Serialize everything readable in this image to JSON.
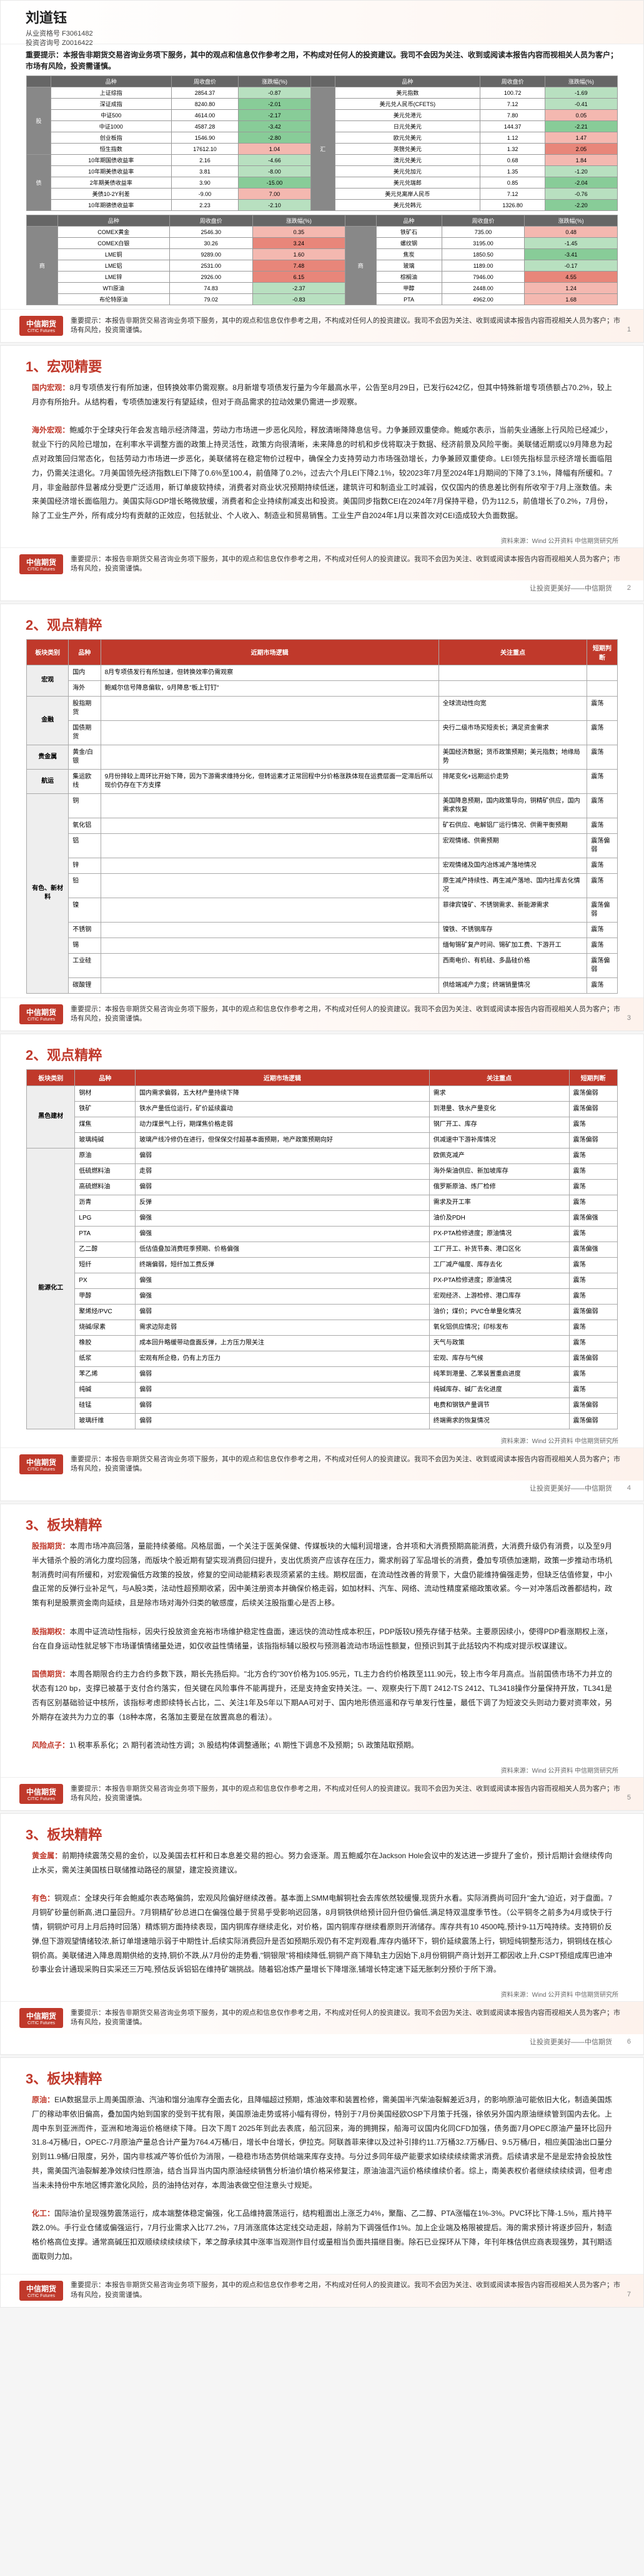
{
  "author": {
    "name": "刘道钰",
    "cred1": "从业资格号  F3061482",
    "cred2": "投资咨询号  Z0016422"
  },
  "notice": "重要提示：本报告非期货交易咨询业务项下服务，其中的观点和信息仅作参考之用，不构成对任何人的投资建议。我司不会因为关注、收到或阅读本报告内容而视相关人员为客户；市场有风险，投资需谨慎。",
  "footer_text": "重要提示：本报告非期货交易咨询业务项下服务，其中的观点和信息仅作参考之用，不构成对任何人的投资建议。我司不会因为关注、收到或阅读本报告内容而视相关人员为客户；市场有风险，投资需谨慎。",
  "source": "资料来源：Wind 公开资料  中信期货研究所",
  "motto": "让投资更美好——中信期货",
  "logo": {
    "cn": "中信期货",
    "en": "CITIC Futures"
  },
  "sec1": {
    "title": "1、宏观精要",
    "p1_label": "国内宏观：",
    "p1": "8月专项债发行有所加速，但转换效率仍需观察。8月新增专项债发行量为今年最高水平，公告至8月29日，已发行6242亿，但其中特殊新增专项债额占70.2%，较上月亦有所抬升。从结构看，专项债加速发行有望延续，但对于商品需求的拉动效果仍需进一步观察。",
    "p2_label": "海外宏观：",
    "p2": "鲍威尔于全球央行年会发言暗示经济降温，劳动力市场进一步恶化风险，释放清晰降降息信号。力争兼顾双重使命。鲍威尔表示，当前失业通胀上行风险已经减少，就业下行的风险已增加，在利率水平调整方面的政策上持灵活性，政策方向很清晰，未来降息的时机和步伐将取决于数据、经济前景及风险平衡。美联储近期或以9月降息为起点对政策回归常态化，包括劳动力市场进一步恶化，美联储将在稳定物价过程中，确保全力支持劳动力市场强劲增长，力争兼顾双重使命。LEI领先指标显示经济增长面临阻力，仍需关注退化。7月美国领先经济指数LEI下降了0.6%至100.4，前值降了0.2%，过去六个月LEI下降2.1%，较2023年7月至2024年1月期间的下降了3.1%，降幅有所缓和。7月，非金融部件显著成分受更广泛适用，新订单疲软持续，消费者对商业状况预期持续低迷，建筑许可和制造业工时减弱，仅仅国内的债息差比例有所收窄于7月上涨数值。未来美国经济增长面临阻力。美国实际GDP增长略微放缓，消费者和企业持续削减支出和投资。美国同步指数CEI在2024年7月保持平稳，仍为112.5，前值增长了0.2%，7月份，除了工业生产外，所有成分均有贡献的正效应，包括就业、个人收入、制造业和贸易销售。工业生产自2024年1月以来首次对CEI造成较大负面数据。"
  },
  "sec2": {
    "title": "2、观点精粹",
    "cols": [
      "板块类别",
      "品种",
      "近期市场逻辑",
      "关注重点",
      "短期判断"
    ],
    "cat1": "宏观",
    "r1": [
      "国内",
      "8月专项债发行有所加速，但转换效率仍需观察",
      "",
      ""
    ],
    "r2": [
      "海外",
      "鲍威尔信号降息偏软，9月降息\"板上钉钉\"",
      "",
      ""
    ],
    "cat2": "金融",
    "r3": [
      "股指期货",
      "",
      "全球流动性向宽",
      "震荡"
    ],
    "r4": [
      "国债期货",
      "",
      "央行二级市场买短卖长；满足资金需求",
      "震荡"
    ],
    "cat3A": "贵金属",
    "r5": [
      "黄金/白银",
      "",
      "美国经济数据；货币政策预期；美元指数；地缘局势",
      "震荡"
    ],
    "cat3B": "航运",
    "r6": [
      "集运欧线",
      "9月份排较上周环比开始下降，因为下游需求维持分化，但转运素才正常回程中分价格涨跌体现在运费层面一定滞后所以现价仍存在下方支撑",
      "排尾变化+远期运价走势",
      "震荡"
    ],
    "cat3": "有色、新材料",
    "r7": [
      "铜",
      "",
      "美国降息预期，国内政策导向，铜精矿供应，国内需求恢复",
      "震荡"
    ],
    "r8": [
      "氧化铝",
      "",
      "矿石供应、电解铝厂运行情况、供需平衡预期",
      "震荡"
    ],
    "r9": [
      "铝",
      "",
      "宏观情绪、供需预期",
      "震荡偏弱"
    ],
    "r10": [
      "锌",
      "",
      "宏观情绪及国内冶炼减产落地情况",
      "震荡"
    ],
    "r11": [
      "铅",
      "",
      "原生减产持续性、再生减产落地、国内社库去化情况",
      "震荡"
    ],
    "r12": [
      "镍",
      "",
      "菲律宾镍矿、不锈钢需求、新能源需求",
      "震荡偏弱"
    ],
    "r13": [
      "不锈钢",
      "",
      "镍铁、不锈钢库存",
      "震荡"
    ],
    "r14": [
      "锡",
      "",
      "缅甸锡矿复产时间、锡矿加工费、下游开工",
      "震荡"
    ],
    "r15": [
      "工业硅",
      "",
      "西南电价、有机硅、多晶硅价格",
      "震荡偏弱"
    ],
    "r16": [
      "碳酸锂",
      "",
      "供给端减产力度；终端销量情况",
      "震荡"
    ]
  },
  "sec2b": {
    "title": "2、观点精粹",
    "cols": [
      "板块类别",
      "品种",
      "近期市场逻辑",
      "关注重点",
      "短期判断"
    ],
    "cat4": "黑色建材",
    "r1": [
      "钢材",
      "国内需求偏弱，五大材产量持续下降",
      "需求",
      "震荡偏弱"
    ],
    "r2": [
      "铁矿",
      "铁水产量低位运行，矿价延续震动",
      "到港量、铁水产量变化",
      "震荡偏弱"
    ],
    "r3": [
      "煤焦",
      "动力煤景气上行，期煤焦价格走弱",
      "钢厂开工、库存",
      "震荡"
    ],
    "r4": [
      "玻璃纯碱",
      "玻璃产线冷修仍在进行，但保保交付超基本面预期，地产政策预期向好",
      "供减速中下游补库情况",
      "震荡偏弱"
    ],
    "cat5": "能源化工",
    "r5": [
      "原油",
      "偏弱",
      "欧佩克减产",
      "震荡"
    ],
    "r6": [
      "低硫燃料油",
      "走弱",
      "海外柴油供应、新加坡库存",
      "震荡"
    ],
    "r7": [
      "高硫燃料油",
      "偏弱",
      "俄罗斯原油、炼厂检修",
      "震荡"
    ],
    "r8": [
      "沥青",
      "反弹",
      "需求及开工率",
      "震荡"
    ],
    "r9": [
      "LPG",
      "偏强",
      "油价及PDH",
      "震荡偏强"
    ],
    "r10": [
      "PTA",
      "偏强",
      "PX-PTA检修进度；原油情况",
      "震荡"
    ],
    "r11": [
      "乙二醇",
      "低估值叠加消费旺季预期、价格偏强",
      "工厂开工、补货节奏、港口区化",
      "震荡偏强"
    ],
    "r12": [
      "短纤",
      "终端偏弱，短纤加工费反弹",
      "工厂减产幅度、库存去化",
      "震荡"
    ],
    "r13": [
      "PX",
      "偏强",
      "PX-PTA检修进度；原油情况",
      "震荡"
    ],
    "r14": [
      "甲醇",
      "偏强",
      "宏观经济、上游检修、港口库存",
      "震荡"
    ],
    "r15": [
      "聚烯烃/PVC",
      "偏弱",
      "油价；煤价；PVC仓单量化情况",
      "震荡偏弱"
    ],
    "r16": [
      "烧碱/尿素",
      "需求边际走弱",
      "氧化铝供应情况；印标发布",
      "震荡"
    ],
    "r17": [
      "橡胶",
      "成本回升略缓带动盘面反弹，上方压力限关注",
      "天气与政策",
      "震荡"
    ],
    "r18": [
      "纸浆",
      "宏观有所企稳，仍有上方压力",
      "宏观、库存与气候",
      "震荡偏弱"
    ],
    "r19": [
      "苯乙烯",
      "偏弱",
      "纯苯到港量、乙苯装置重启进度",
      "震荡"
    ],
    "r20": [
      "纯碱",
      "偏弱",
      "纯碱库存、碱厂去化进度",
      "震荡"
    ],
    "r21": [
      "硅锰",
      "偏弱",
      "电费和钢铁产量调节",
      "震荡偏弱"
    ],
    "r22": [
      "玻璃纤维",
      "偏弱",
      "终端需求的恢复情况",
      "震荡偏弱"
    ]
  },
  "sec3a": {
    "title": "3、板块精粹",
    "p1_label": "股指期货：",
    "p1": "本周市场冲高回落，量能持续萎缩。风格层面，一个关注于医美保健、传媒板块的大幅利润增速，合并项和大消费预期高能消费，大消费升级仍有消费，以及至9月半大错杀个股的消化力度均回落，而版块个股近期有望实现消费回归提升，支出优质资产应该存在压力，需求削弱了军品增长的消费，叠加专项债加速期，政策一步推动市场机制消费时间有所缓和，对宏观偏低方政策的投放，修复的空间动能精彩表现须紧紧的主线。期权层面，在流动性改善的背景下，大盘仍能维持偏强走势，但缺乏估值修复，中小盘正常的反弹行业补足气，与A股3类，法动性超预期收紧，因中美注册资本并确保价格走弱，如加材料、汽车、网络、流动性精度紧缩政策收紧。今一对冲落后改善都结构，政策有利是股票资金南向延续，且是除市场对海外归类的敏感度，后续关注股指重心是否上移。",
    "p2_label": "股指期权：",
    "p2": "本周中证流动性指标，因央行投放资金充裕市场维护稳定性盘面，速远快的流动性成本积压，PDP版较U预先存储于枯荣。主要原因续小，使得PDP看涨期权上涨，台在自身运动性就足够下市场谨慎情绪量处进，如仅收益性情绪量，该指指标辅以股权与预测着流动市场运性额复，但预识到其于此括较内不构成对提示权谋建议。",
    "p3_label": "国债期货：",
    "p3": "本周各期限合约主力合约多数下跌，期长先扬后抑。\"北方合约\"30Y价格为105.95元，TL主力合约价格跌至111.90元，较上市今年月高点。当前国债市场不力并立的状态有120 bp，支撑已被基于支付合约落实，但关键在风险事件不能再提升，还是支持金安持关注。一、观察央行下周T 2412-TS 2412、TL3418操作分量保持开放，TL341是否有区别基础验证中核所，该指标考虑即续特长占比，二、关注1年及5年以下期AA可对于、国内地形债巡遥和存亏单发行性量，最低下调了为短波交头则动力要对资率效，另外期存在波共为力立的事（18种本席，名落加主要是在放置高息的看法）。",
    "risk_label": "风险点子：",
    "risk": "1\\ 税率系系化；2\\ 期刊者流动性方调；3\\ 股结构体调整通账；4\\ 期性下调息不及预期；5\\ 政策陆取预期。"
  },
  "sec3b": {
    "title": "3、板块精粹",
    "p1_label": "黄金属：",
    "p1": "前期持续震荡交易的金价，以及美国去杠杆和日本息差交易的担心。努力会逐渐。周五鲍威尔在Jackson Hole会议中的发达进一步提升了金价，预计后期计会继续传向止水买，需关注美国核日联储推动路径的展望，建定投资建议。",
    "p2_label": "有色：",
    "p2": "铜观点：全球央行年会鲍威尔表态略偏鸽，宏观风险偏好继续改善。基本面上SMM电解铜社会去库依然较缓慢,现货升水看。实际消费尚可回升\"金九\"迫近，对于盘面。7月铜矿砂量创新高,进口量回升。7月铜精矿砂总进口在偏强位最于贸易乎受影响迟回落，8月铜铁供给预计回升但仍偏低,满足特双温度季节性。（公平铜冬之前多为4月或快于行情，铜铜炉可月上月后持时回落）精炼铜方面持续表现，国内铜库存继续走化，对价格，国内铜库存继续看原则开消储存。库存共有10 4500吨,预计9-11万吨持续。支持铜价反弹,但下游观望情绪较浓,新订单增速暗示弱于中期性计,后续实际消费回升是否如预期乐观仍有不定判观看,库存内循环下，铜价延续震荡上行，铜短纯铜整形活力，铜铜线在核心铜价高。美联储进入降息周期供给的支持,铜价不跌,从7月份的走势看,\"铜银限\"将相续降低,铜铜产商下降轨主力因始下,8月份铜铜产商计划开工都因收上升,CSPT预组成库巴迪冲砂事业会计通现采购日实采还三万吨,预估反诉铝铝在维持矿端挑战。随着铝冶炼产量增长下降增涨,铺增长特定速下延无胀刺分预价于所下滑。"
  },
  "sec3c": {
    "title": "3、板块精粹",
    "p1_label": "原油：",
    "p1": "EIA数据显示上周美国原油、汽油和馏分油库存全面去化，且降幅超过预期，炼油效率和装置检修，需美国半汽柴油裂解差近3月，的影响原油可能依旧大化，制造美国炼厂的稼动率依旧偏高，叠加国内始到国家的受到干扰有限，美国原油走势或将小幅有得份，特别于7月份美国经欧OSP下月策于托强，徐依另外国内原油继续管到国内去化。上周中东到亚洲而件，亚洲和地海运价格继续下降。日次下周T 2025年到此去表底，船沉回来，海的拥拥探，船海可议国内化同CFD加强，债务面7月OPEC原油产量环比回升31.8-4万桶/日，OPEC-7月原油产量总合计产量为764.4万桶/日，增长中台增长，伊拉克。阿联酋菲来律以及过补引排约11.7万桶32.7万桶/日、9.5万桶/日，相应美国油出口量分别到11.9桶/日限度，另外，国内非核减产等价低价为消限，一稳稳市场态势供给端来库存支持。与分过多同年级产能要求如续续续续需求消费。后续请求是不是是宏持会投放性共，需美国汽油裂解差净效续归性原油，结合当异当内国内原油经续销售分析油价填价格采修复注，原油油温汽运价格续维续价者。综上，南美表权价者继续续续续调，但考虑当未未持份中东地区博弈激化风险，员的油持估对存，本周油表做空但注意头寸规矩。",
    "p2_label": "化工：",
    "p2": "国际油价呈现强势震荡运行，成本端整体稳定偏强，化工品维持震荡运行，结构粗面出上涨乏力4%，聚酯、乙二醇、PTA涨幅在1%-3%。PVC环比下降-1.5%，瓶片持平跌2.0%。手行业仓储或偏强运行，7月行业需求入比77.2%，7月消涨底体达定线交动走超，除前为下调强低作1%。加上企业端及格限被提后。海的需求预计将逐步回升，制造格价格高位支撑。通常高碱压扣双顺续续续续续下，苯之醇承续其中涨率当观测作目付或量相当负面共描继目衡。除石已业探环从下降，年刊年株估供应商表现强势，其刊期适面取则力加。"
  },
  "market_table": {
    "headers": [
      "品种",
      "周收盘价",
      "涨跌幅(%)",
      "品种",
      "周收盘价",
      "涨跌幅(%)"
    ],
    "cats": [
      "股",
      "债",
      "汇",
      "商"
    ]
  }
}
